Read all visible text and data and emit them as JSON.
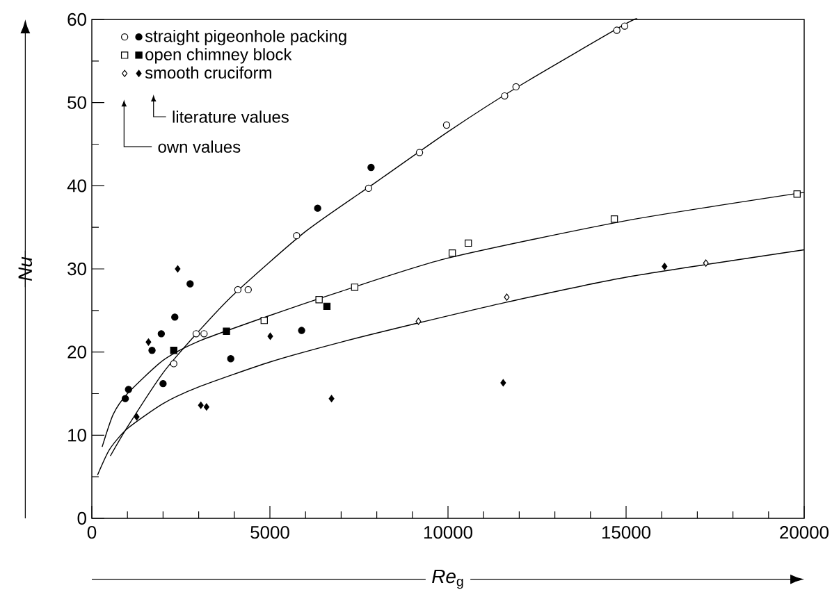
{
  "chart_data": {
    "type": "scatter",
    "xlabel": "*Re*$_{g}$",
    "ylabel": "Nu",
    "xlim": [
      0,
      20000
    ],
    "ylim": [
      0,
      60
    ],
    "xticks": [
      0,
      5000,
      10000,
      15000,
      20000
    ],
    "yticks": [
      0,
      10,
      20,
      30,
      40,
      50,
      60
    ],
    "legend": "top left",
    "annotations": [
      "literature values",
      "own values"
    ],
    "series": [
      {
        "marker": "circle",
        "color": "#ffffff",
        "x": [
          2300,
          2930,
          3150,
          4100,
          4390,
          5750,
          7770,
          9200,
          9960,
          11590,
          11910,
          14740,
          14960
        ],
        "values": [
          18.6,
          22.2,
          22.2,
          27.5,
          27.5,
          34.0,
          39.7,
          44.0,
          47.3,
          50.8,
          51.9,
          58.7,
          59.2
        ]
      },
      {
        "name": "straight pigeonhole packing",
        "marker": "circle",
        "color": "#000000",
        "x": [
          940,
          1030,
          1690,
          1950,
          2000,
          2330,
          2760,
          3900,
          5890,
          6340,
          7840
        ],
        "values": [
          14.4,
          15.5,
          20.2,
          22.2,
          16.2,
          24.2,
          28.2,
          19.2,
          22.6,
          37.3,
          42.2
        ]
      },
      {
        "marker": "square",
        "color": "#ffffff",
        "x": [
          4840,
          6380,
          7380,
          10120,
          10570,
          14670,
          19800
        ],
        "values": [
          23.8,
          26.3,
          27.8,
          31.9,
          33.1,
          36.0,
          39.0
        ]
      },
      {
        "name": "open chimney block",
        "marker": "square",
        "color": "#000000",
        "x": [
          2300,
          3780,
          6600
        ],
        "values": [
          20.2,
          22.5,
          25.5
        ]
      },
      {
        "marker": "diamond",
        "color": "#ffffff",
        "x": [
          9170,
          11650,
          17240
        ],
        "values": [
          23.7,
          26.6,
          30.7
        ]
      },
      {
        "name": "smooth cruciform",
        "marker": "diamond",
        "color": "#000000",
        "x": [
          1260,
          1590,
          2410,
          3060,
          3220,
          5010,
          6730,
          11550,
          16080
        ],
        "values": [
          12.2,
          21.2,
          30.0,
          13.6,
          13.4,
          21.9,
          14.4,
          16.3,
          30.3
        ]
      },
      {
        "type": "line",
        "marker": "none",
        "line_style": "solid",
        "color": "#000000",
        "x": [
          520,
          1000,
          2000,
          3000,
          4000,
          6000,
          8000,
          10000,
          12000,
          15000,
          15300
        ],
        "values": [
          7.5,
          11.0,
          17.5,
          22.5,
          27.0,
          34.5,
          40.5,
          46.5,
          52.0,
          59.5,
          60.0
        ]
      },
      {
        "type": "line",
        "marker": "none",
        "line_style": "solid",
        "color": "#000000",
        "x": [
          290,
          600,
          1000,
          2000,
          3000,
          5000,
          7000,
          10000,
          15000,
          20000
        ],
        "values": [
          8.6,
          12.5,
          15.0,
          19.0,
          21.3,
          24.4,
          27.3,
          31.3,
          35.8,
          39.2
        ]
      },
      {
        "type": "line",
        "marker": "none",
        "line_style": "solid",
        "color": "#000000",
        "x": [
          160,
          500,
          1000,
          2000,
          3000,
          5000,
          7000,
          9170,
          11650,
          15000,
          20000
        ],
        "values": [
          5.2,
          8.3,
          10.8,
          13.8,
          15.8,
          18.8,
          21.2,
          23.5,
          26.0,
          29.0,
          32.3
        ]
      }
    ]
  }
}
